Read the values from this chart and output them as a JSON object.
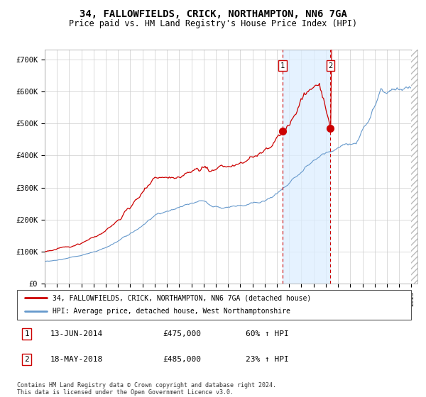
{
  "title": "34, FALLOWFIELDS, CRICK, NORTHAMPTON, NN6 7GA",
  "subtitle": "Price paid vs. HM Land Registry's House Price Index (HPI)",
  "title_fontsize": 10,
  "subtitle_fontsize": 8.5,
  "ylabel_ticks": [
    "£0",
    "£100K",
    "£200K",
    "£300K",
    "£400K",
    "£500K",
    "£600K",
    "£700K"
  ],
  "ytick_values": [
    0,
    100000,
    200000,
    300000,
    400000,
    500000,
    600000,
    700000
  ],
  "ylim": [
    0,
    730000
  ],
  "xlim_start": 1995.0,
  "xlim_end": 2025.5,
  "purchase1_date": 2014.45,
  "purchase1_price": 475000,
  "purchase1_label": "1",
  "purchase1_display": "13-JUN-2014",
  "purchase1_price_display": "£475,000",
  "purchase1_hpi": "60% ↑ HPI",
  "purchase2_date": 2018.37,
  "purchase2_price": 485000,
  "purchase2_label": "2",
  "purchase2_display": "18-MAY-2018",
  "purchase2_price_display": "£485,000",
  "purchase2_hpi": "23% ↑ HPI",
  "legend_line1": "34, FALLOWFIELDS, CRICK, NORTHAMPTON, NN6 7GA (detached house)",
  "legend_line2": "HPI: Average price, detached house, West Northamptonshire",
  "footer1": "Contains HM Land Registry data © Crown copyright and database right 2024.",
  "footer2": "This data is licensed under the Open Government Licence v3.0.",
  "red_color": "#cc0000",
  "blue_color": "#6699cc",
  "background_shading": "#ddeeff",
  "grid_color": "#cccccc"
}
